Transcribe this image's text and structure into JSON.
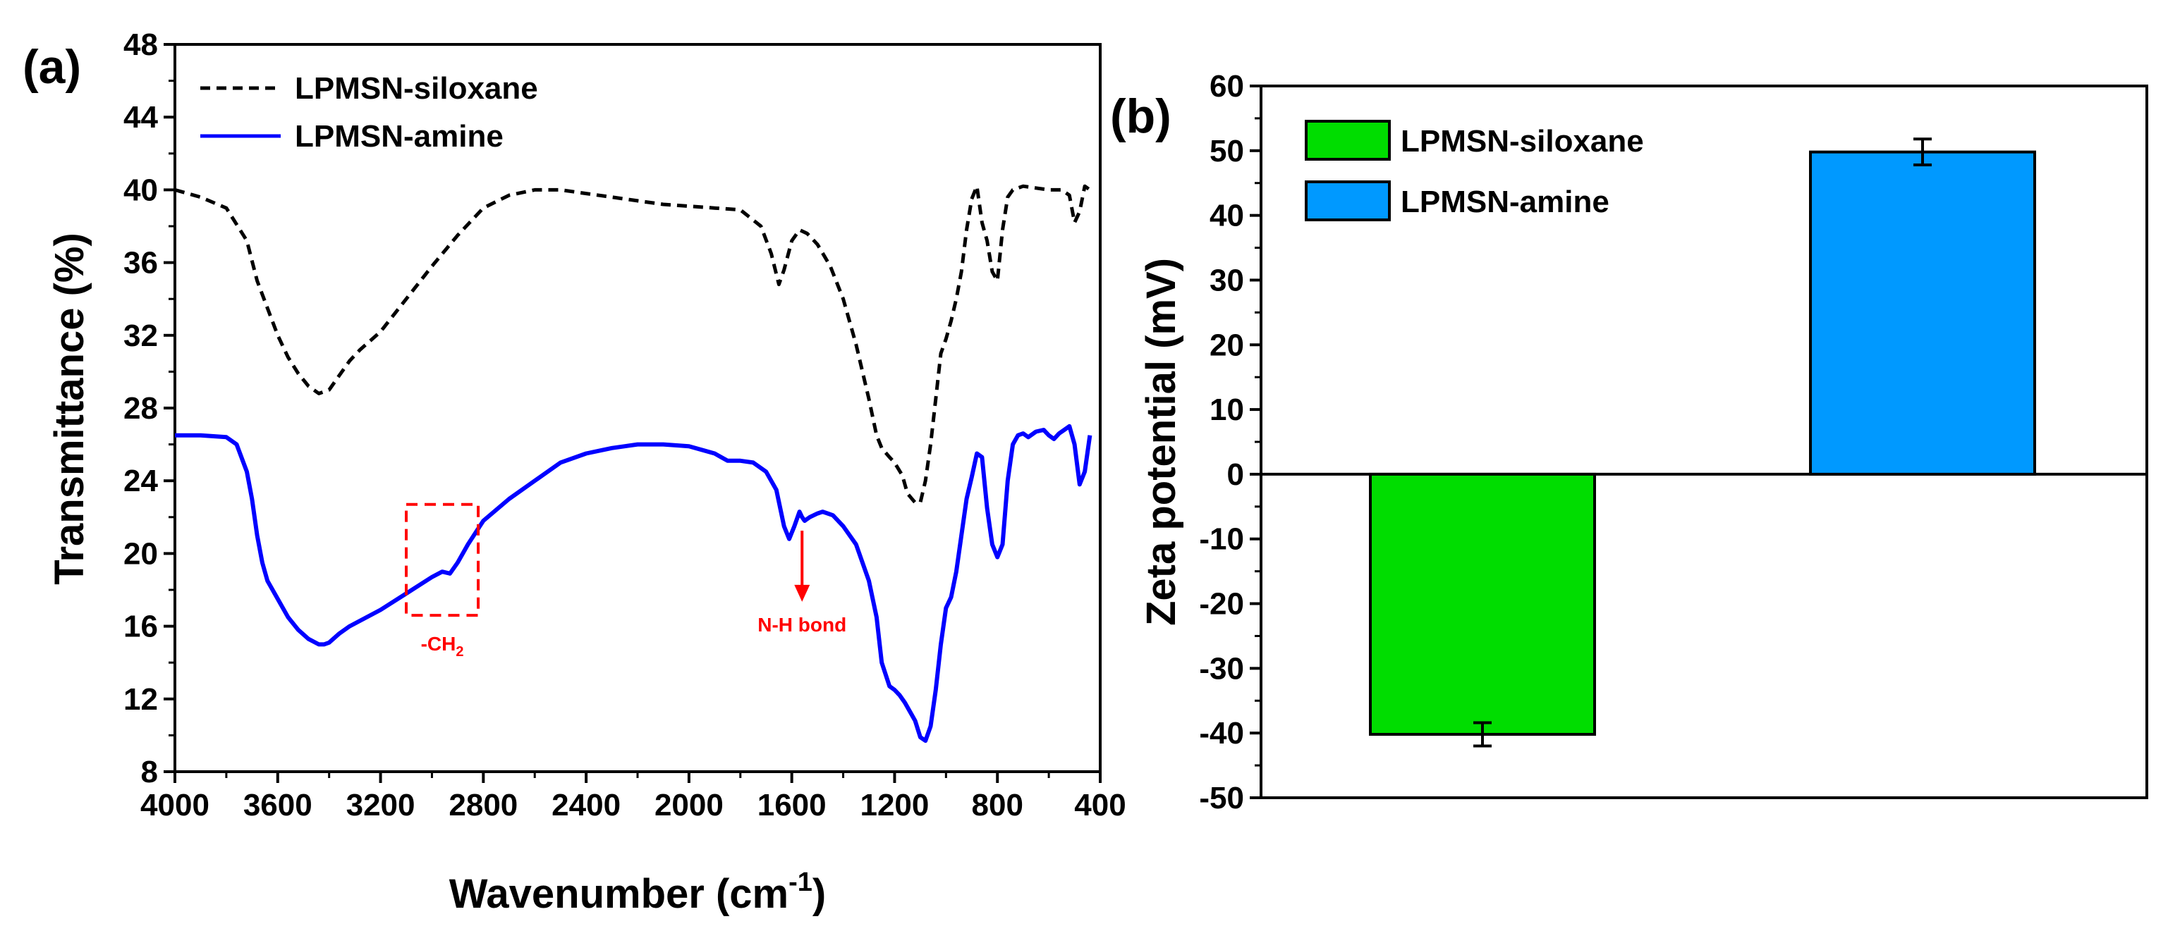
{
  "chart_data": [
    {
      "panel": "(a)",
      "type": "line",
      "xlabel": "Wavenumber (cm",
      "xlabel_sup": "-1",
      "xlabel_close": ")",
      "ylabel": "Transmittance (%)",
      "xlim": [
        4000,
        400
      ],
      "ylim": [
        8,
        48
      ],
      "xticks": [
        4000,
        3600,
        3200,
        2800,
        2400,
        2000,
        1600,
        1200,
        800,
        400
      ],
      "yticks": [
        8,
        12,
        16,
        20,
        24,
        28,
        32,
        36,
        40,
        44,
        48
      ],
      "legend_position": "top-left",
      "series": [
        {
          "name": "LPMSN-siloxane",
          "color": "#000000",
          "style": "dashed",
          "x": [
            4000,
            3900,
            3800,
            3720,
            3680,
            3640,
            3600,
            3560,
            3520,
            3480,
            3440,
            3400,
            3360,
            3320,
            3280,
            3200,
            3100,
            3000,
            2900,
            2800,
            2700,
            2600,
            2500,
            2400,
            2300,
            2200,
            2100,
            2000,
            1900,
            1800,
            1720,
            1680,
            1650,
            1630,
            1600,
            1570,
            1540,
            1500,
            1450,
            1400,
            1350,
            1300,
            1270,
            1250,
            1220,
            1200,
            1170,
            1150,
            1120,
            1100,
            1080,
            1060,
            1040,
            1020,
            1000,
            980,
            960,
            940,
            920,
            900,
            880,
            860,
            840,
            820,
            800,
            780,
            760,
            740,
            700,
            650,
            600,
            550,
            520,
            500,
            480,
            460,
            440
          ],
          "y": [
            40,
            39.6,
            39.0,
            37.2,
            35.0,
            33.5,
            32.0,
            30.8,
            29.9,
            29.2,
            28.8,
            29.0,
            29.8,
            30.6,
            31.2,
            32.2,
            34.0,
            35.8,
            37.5,
            39.0,
            39.7,
            40.0,
            40.0,
            39.8,
            39.6,
            39.4,
            39.2,
            39.1,
            39.0,
            38.9,
            38.0,
            36.5,
            34.8,
            35.6,
            37.2,
            37.8,
            37.6,
            37.0,
            35.8,
            34.0,
            31.5,
            28.5,
            26.5,
            25.8,
            25.3,
            25.0,
            24.3,
            23.3,
            22.8,
            22.8,
            24.0,
            26.0,
            28.5,
            31.0,
            31.8,
            32.8,
            34.0,
            35.5,
            37.8,
            39.5,
            40.2,
            38.2,
            37.2,
            35.5,
            35.0,
            37.8,
            39.6,
            40.0,
            40.2,
            40.1,
            40.0,
            40.0,
            39.7,
            38.2,
            38.8,
            40.2,
            40.0
          ]
        },
        {
          "name": "LPMSN-amine",
          "color": "#0000ff",
          "style": "solid",
          "x": [
            4000,
            3900,
            3800,
            3760,
            3720,
            3700,
            3680,
            3660,
            3640,
            3600,
            3560,
            3520,
            3480,
            3440,
            3420,
            3400,
            3360,
            3320,
            3280,
            3200,
            3100,
            3000,
            2960,
            2930,
            2900,
            2860,
            2800,
            2700,
            2600,
            2500,
            2400,
            2300,
            2200,
            2100,
            2000,
            1900,
            1850,
            1800,
            1750,
            1700,
            1660,
            1630,
            1610,
            1590,
            1570,
            1560,
            1550,
            1530,
            1500,
            1480,
            1460,
            1440,
            1400,
            1350,
            1300,
            1270,
            1250,
            1220,
            1200,
            1180,
            1160,
            1140,
            1120,
            1100,
            1080,
            1060,
            1040,
            1020,
            1000,
            980,
            960,
            940,
            920,
            900,
            880,
            860,
            840,
            820,
            800,
            780,
            760,
            740,
            720,
            700,
            680,
            650,
            620,
            600,
            580,
            560,
            540,
            520,
            500,
            480,
            460,
            440
          ],
          "y": [
            26.5,
            26.5,
            26.4,
            26.0,
            24.5,
            23.0,
            21.0,
            19.5,
            18.5,
            17.5,
            16.5,
            15.8,
            15.3,
            15.0,
            15.0,
            15.1,
            15.6,
            16.0,
            16.3,
            16.9,
            17.8,
            18.7,
            19.0,
            18.9,
            19.5,
            20.5,
            21.8,
            23.0,
            24.0,
            25.0,
            25.5,
            25.8,
            26.0,
            26.0,
            25.9,
            25.5,
            25.1,
            25.1,
            25.0,
            24.5,
            23.5,
            21.5,
            20.8,
            21.5,
            22.3,
            22.0,
            21.8,
            22.0,
            22.2,
            22.3,
            22.2,
            22.1,
            21.5,
            20.5,
            18.5,
            16.5,
            14.0,
            12.7,
            12.5,
            12.2,
            11.8,
            11.3,
            10.8,
            9.9,
            9.7,
            10.5,
            12.5,
            15.0,
            17.0,
            17.6,
            19.0,
            21.0,
            23.0,
            24.2,
            25.5,
            25.3,
            22.5,
            20.5,
            19.8,
            20.5,
            24.0,
            26.0,
            26.5,
            26.6,
            26.4,
            26.7,
            26.8,
            26.5,
            26.3,
            26.6,
            26.8,
            27.0,
            26.0,
            23.8,
            24.5,
            26.5
          ]
        }
      ],
      "annotations": [
        {
          "label": "-CH",
          "sub": "2",
          "x_range": [
            3100,
            2820
          ],
          "y_range": [
            16.6,
            22.7
          ],
          "color": "#ff0000"
        },
        {
          "label": "N-H bond",
          "arrow_x": 1560,
          "arrow_from_y": 21.8,
          "arrow_to_y": 17.5,
          "color": "#ff0000"
        }
      ]
    },
    {
      "panel": "(b)",
      "type": "bar",
      "xlabel": "",
      "ylabel": "Zeta potential (mV)",
      "ylim": [
        -50,
        60
      ],
      "yticks": [
        -50,
        -40,
        -30,
        -20,
        -10,
        0,
        10,
        20,
        30,
        40,
        50,
        60
      ],
      "legend_position": "top-left",
      "categories": [
        "LPMSN-siloxane",
        "LPMSN-amine"
      ],
      "values": [
        -40.2,
        49.8
      ],
      "errors": [
        1.8,
        2.0
      ],
      "colors": [
        "#00dd00",
        "#0099ff"
      ]
    }
  ]
}
